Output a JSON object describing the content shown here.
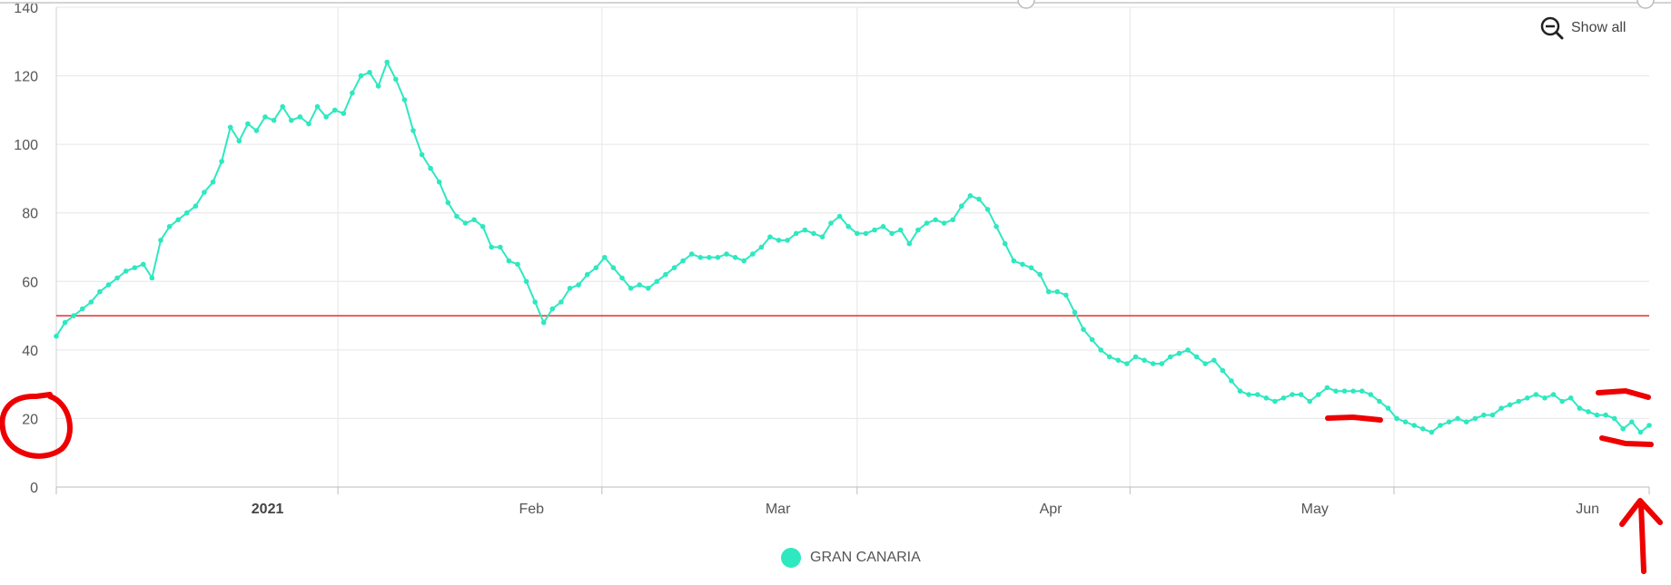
{
  "colors": {
    "series": "#2ee8c0",
    "threshold": "#e03030",
    "grid": "#e6e6e6",
    "annotation": "#ee0000"
  },
  "controls": {
    "show_all_label": "Show all",
    "show_all_icon": "zoom-out-icon"
  },
  "chart_data": {
    "type": "line",
    "title": "",
    "xlabel": "",
    "ylabel": "",
    "x_tick_labels": [
      "2021",
      "Feb",
      "Mar",
      "Apr",
      "May",
      "Jun"
    ],
    "y_ticks": [
      0,
      20,
      40,
      60,
      80,
      100,
      120,
      140
    ],
    "ylim": [
      0,
      140
    ],
    "grid": true,
    "legend": "bottom-center",
    "threshold": 50,
    "series": [
      {
        "name": "GRAN CANARIA",
        "values": [
          44,
          48,
          50,
          52,
          54,
          57,
          59,
          61,
          63,
          64,
          65,
          61,
          72,
          76,
          78,
          80,
          82,
          86,
          89,
          95,
          105,
          101,
          106,
          104,
          108,
          107,
          111,
          107,
          108,
          106,
          111,
          108,
          110,
          109,
          115,
          120,
          121,
          117,
          124,
          119,
          113,
          104,
          97,
          93,
          89,
          83,
          79,
          77,
          78,
          76,
          70,
          70,
          66,
          65,
          60,
          54,
          48,
          52,
          54,
          58,
          59,
          62,
          64,
          67,
          64,
          61,
          58,
          59,
          58,
          60,
          62,
          64,
          66,
          68,
          67,
          67,
          67,
          68,
          67,
          66,
          68,
          70,
          73,
          72,
          72,
          74,
          75,
          74,
          73,
          77,
          79,
          76,
          74,
          74,
          75,
          76,
          74,
          75,
          71,
          75,
          77,
          78,
          77,
          78,
          82,
          85,
          84,
          81,
          76,
          71,
          66,
          65,
          64,
          62,
          57,
          57,
          56,
          51,
          46,
          43,
          40,
          38,
          37,
          36,
          38,
          37,
          36,
          36,
          38,
          39,
          40,
          38,
          36,
          37,
          34,
          31,
          28,
          27,
          27,
          26,
          25,
          26,
          27,
          27,
          25,
          27,
          29,
          28,
          28,
          28,
          28,
          27,
          25,
          23,
          20,
          19,
          18,
          17,
          16,
          18,
          19,
          20,
          19,
          20,
          21,
          21,
          23,
          24,
          25,
          26,
          27,
          26,
          27,
          25,
          26,
          23,
          22,
          21,
          21,
          20,
          17,
          19,
          16,
          18
        ],
        "first_date": "2020-12-15",
        "last_date": "2021-06-14"
      }
    ]
  }
}
